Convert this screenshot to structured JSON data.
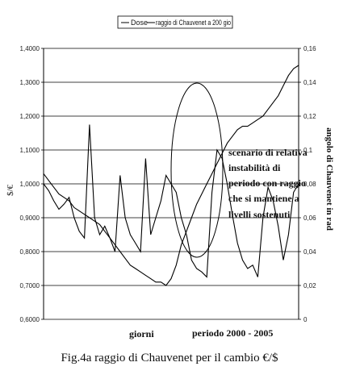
{
  "chart_data": {
    "type": "line",
    "legend": {
      "placement": "top",
      "entries": [
        "Dose",
        "raggio di Chauvenet a 200 gio"
      ]
    },
    "ylabel_left": "$/€",
    "ylabel_right": "angolo di Chauvenet in rad",
    "xlabel": "giorni",
    "period_label": "periodo 2000  -  2005",
    "ylim_left": [
      0.6,
      1.4
    ],
    "ylim_right": [
      0,
      0.16
    ],
    "left_ticks": [
      "0,6000",
      "0,7000",
      "0,8000",
      "0,9000",
      "1,0000",
      "1,1000",
      "1,2000",
      "1,3000",
      "1,4000"
    ],
    "right_ticks": [
      "0",
      "0,02",
      "0,04",
      "0,06",
      "0,08",
      "0,1",
      "0,12",
      "0,14",
      "0,16"
    ],
    "grid": true,
    "annotation": [
      "scenario di relativa",
      "instabilità di",
      "periodo con raggio",
      "che si mantiene a",
      "livelli sostenuti"
    ],
    "series": [
      {
        "name": "Dose",
        "color": "#000000",
        "x": [
          0,
          2,
          4,
          6,
          8,
          10,
          12,
          14,
          16,
          18,
          20,
          22,
          24,
          26,
          28,
          30,
          32,
          34,
          36,
          38,
          40,
          42,
          44,
          46,
          48,
          50,
          52,
          54,
          56,
          58,
          60,
          62,
          64,
          66,
          68,
          70,
          72,
          74,
          76,
          78,
          80,
          82,
          84,
          86,
          88,
          90,
          92,
          94,
          96,
          98,
          100
        ],
        "values": [
          1.03,
          1.01,
          0.99,
          0.97,
          0.96,
          0.95,
          0.93,
          0.92,
          0.91,
          0.9,
          0.89,
          0.88,
          0.86,
          0.84,
          0.82,
          0.8,
          0.78,
          0.76,
          0.75,
          0.74,
          0.73,
          0.72,
          0.71,
          0.71,
          0.7,
          0.72,
          0.76,
          0.82,
          0.86,
          0.9,
          0.94,
          0.97,
          1.0,
          1.03,
          1.06,
          1.09,
          1.12,
          1.14,
          1.16,
          1.17,
          1.17,
          1.18,
          1.19,
          1.2,
          1.22,
          1.24,
          1.26,
          1.29,
          1.32,
          1.34,
          1.35
        ]
      },
      {
        "name": "raggio di Chauvenet a 200 gio",
        "color": "#000000",
        "x": [
          0,
          2,
          4,
          6,
          8,
          10,
          12,
          14,
          16,
          18,
          20,
          22,
          24,
          26,
          28,
          30,
          32,
          34,
          36,
          38,
          40,
          42,
          44,
          46,
          48,
          50,
          52,
          54,
          56,
          58,
          60,
          62,
          64,
          66,
          68,
          70,
          72,
          74,
          76,
          78,
          80,
          82,
          84,
          86,
          88,
          90,
          92,
          94,
          96,
          98,
          100
        ],
        "values": [
          0.08,
          0.076,
          0.07,
          0.065,
          0.068,
          0.072,
          0.06,
          0.052,
          0.048,
          0.115,
          0.06,
          0.05,
          0.055,
          0.048,
          0.04,
          0.085,
          0.06,
          0.05,
          0.045,
          0.04,
          0.095,
          0.05,
          0.06,
          0.07,
          0.085,
          0.08,
          0.075,
          0.06,
          0.05,
          0.035,
          0.03,
          0.028,
          0.025,
          0.075,
          0.1,
          0.095,
          0.08,
          0.062,
          0.045,
          0.035,
          0.03,
          0.032,
          0.025,
          0.06,
          0.078,
          0.07,
          0.055,
          0.035,
          0.05,
          0.075,
          0.08
        ]
      }
    ]
  },
  "caption": "Fig.4a raggio di Chauvenet per il cambio  €/$"
}
